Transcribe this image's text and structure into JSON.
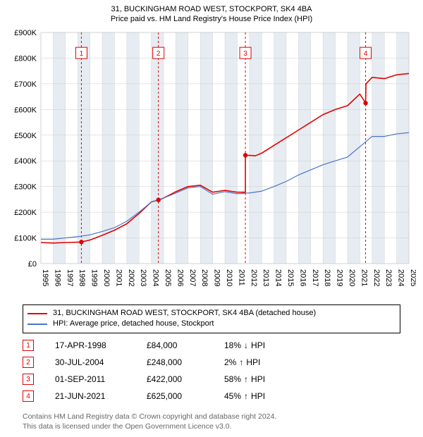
{
  "title_line1": "31, BUCKINGHAM ROAD WEST, STOCKPORT, SK4 4BA",
  "title_line2": "Price paid vs. HM Land Registry's House Price Index (HPI)",
  "chart": {
    "type": "line",
    "background_color": "#ffffff",
    "plot_area_fill": "#f0f3f6",
    "plot_area_stroke": "#bbbbbb",
    "x_years_start": 1995,
    "x_years_end": 2025,
    "ylim": [
      0,
      900000
    ],
    "ytick_step": 100000,
    "ytick_labels": [
      "£0",
      "£100K",
      "£200K",
      "£300K",
      "£400K",
      "£500K",
      "£600K",
      "£700K",
      "£800K",
      "£900K"
    ],
    "grid_color": "#cccccc",
    "band_stripe_color": "#e6ecf2",
    "series": [
      {
        "name": "property",
        "label": "31, BUCKINGHAM ROAD WEST, STOCKPORT, SK4 4BA (detached house)",
        "color": "#e00000",
        "width": 1.6,
        "points": [
          [
            1995.0,
            82000
          ],
          [
            1996.0,
            80000
          ],
          [
            1997.0,
            82000
          ],
          [
            1998.3,
            84000
          ],
          [
            1999.0,
            92000
          ],
          [
            2000.0,
            110000
          ],
          [
            2001.0,
            130000
          ],
          [
            2002.0,
            155000
          ],
          [
            2003.0,
            195000
          ],
          [
            2004.0,
            240000
          ],
          [
            2004.6,
            248000
          ],
          [
            2005.0,
            255000
          ],
          [
            2006.0,
            280000
          ],
          [
            2007.0,
            300000
          ],
          [
            2008.0,
            305000
          ],
          [
            2009.0,
            278000
          ],
          [
            2010.0,
            285000
          ],
          [
            2011.0,
            278000
          ],
          [
            2011.67,
            278000
          ],
          [
            2011.67,
            422000
          ],
          [
            2012.5,
            420000
          ],
          [
            2013.0,
            430000
          ],
          [
            2014.0,
            460000
          ],
          [
            2015.0,
            490000
          ],
          [
            2016.0,
            520000
          ],
          [
            2017.0,
            550000
          ],
          [
            2018.0,
            580000
          ],
          [
            2019.0,
            600000
          ],
          [
            2020.0,
            615000
          ],
          [
            2021.0,
            660000
          ],
          [
            2021.47,
            625000
          ],
          [
            2021.5,
            700000
          ],
          [
            2022.0,
            725000
          ],
          [
            2023.0,
            720000
          ],
          [
            2024.0,
            735000
          ],
          [
            2025.0,
            740000
          ]
        ]
      },
      {
        "name": "hpi",
        "label": "HPI: Average price, detached house, Stockport",
        "color": "#4a74c9",
        "width": 1.2,
        "points": [
          [
            1995.0,
            95000
          ],
          [
            1996.0,
            95000
          ],
          [
            1997.0,
            100000
          ],
          [
            1998.0,
            105000
          ],
          [
            1999.0,
            112000
          ],
          [
            2000.0,
            125000
          ],
          [
            2001.0,
            140000
          ],
          [
            2002.0,
            165000
          ],
          [
            2003.0,
            200000
          ],
          [
            2004.0,
            240000
          ],
          [
            2005.0,
            255000
          ],
          [
            2006.0,
            275000
          ],
          [
            2007.0,
            295000
          ],
          [
            2008.0,
            300000
          ],
          [
            2009.0,
            270000
          ],
          [
            2010.0,
            280000
          ],
          [
            2011.0,
            272000
          ],
          [
            2012.0,
            275000
          ],
          [
            2013.0,
            282000
          ],
          [
            2014.0,
            300000
          ],
          [
            2015.0,
            320000
          ],
          [
            2016.0,
            345000
          ],
          [
            2017.0,
            365000
          ],
          [
            2018.0,
            385000
          ],
          [
            2019.0,
            400000
          ],
          [
            2020.0,
            415000
          ],
          [
            2021.0,
            455000
          ],
          [
            2022.0,
            495000
          ],
          [
            2023.0,
            495000
          ],
          [
            2024.0,
            505000
          ],
          [
            2025.0,
            510000
          ]
        ]
      }
    ],
    "sale_markers": [
      {
        "n": "1",
        "year": 1998.3,
        "value": 84000,
        "label_y": 820000
      },
      {
        "n": "2",
        "year": 2004.58,
        "value": 248000,
        "label_y": 820000
      },
      {
        "n": "3",
        "year": 2011.67,
        "value": 422000,
        "label_y": 820000
      },
      {
        "n": "4",
        "year": 2021.47,
        "value": 625000,
        "label_y": 820000
      }
    ],
    "marker_line_color": "#e00000",
    "marker_line_dash": "3,3",
    "marker_dot_color": "#e00000",
    "marker_box_border": "#e00000",
    "marker_box_text": "#e00000"
  },
  "legend": {
    "items": [
      {
        "color": "#e00000",
        "label": "31, BUCKINGHAM ROAD WEST, STOCKPORT, SK4 4BA (detached house)"
      },
      {
        "color": "#4a74c9",
        "label": "HPI: Average price, detached house, Stockport"
      }
    ]
  },
  "sales": [
    {
      "n": "1",
      "date": "17-APR-1998",
      "price": "£84,000",
      "delta": "18%",
      "dir": "down",
      "suffix": "HPI"
    },
    {
      "n": "2",
      "date": "30-JUL-2004",
      "price": "£248,000",
      "delta": "2%",
      "dir": "up",
      "suffix": "HPI"
    },
    {
      "n": "3",
      "date": "01-SEP-2011",
      "price": "£422,000",
      "delta": "58%",
      "dir": "up",
      "suffix": "HPI"
    },
    {
      "n": "4",
      "date": "21-JUN-2021",
      "price": "£625,000",
      "delta": "45%",
      "dir": "up",
      "suffix": "HPI"
    }
  ],
  "footer_line1": "Contains HM Land Registry data © Crown copyright and database right 2024.",
  "footer_line2": "This data is licensed under the Open Government Licence v3.0."
}
